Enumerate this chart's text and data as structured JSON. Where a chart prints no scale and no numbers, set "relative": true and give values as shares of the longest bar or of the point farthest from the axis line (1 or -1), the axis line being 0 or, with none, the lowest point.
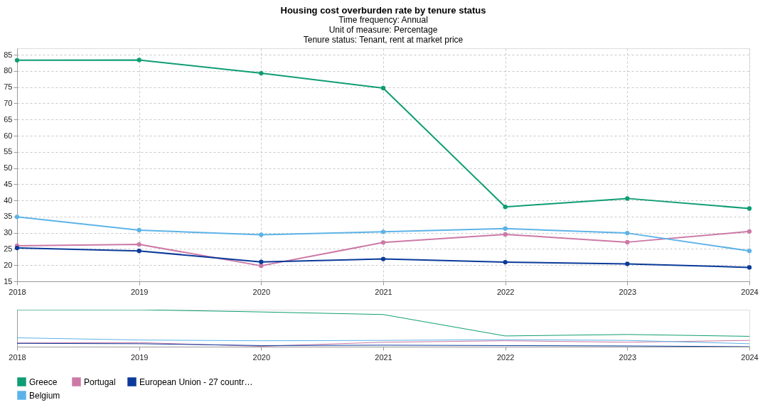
{
  "chart_data": [
    {
      "type": "line",
      "title": "Housing cost overburden rate by tenure status",
      "subtitle": "Time frequency:  Annual\nUnit of measure:  Percentage\nTenure status:  Tenant, rent at market price",
      "x": [
        2018,
        2019,
        2020,
        2021,
        2022,
        2023,
        2024
      ],
      "series": [
        {
          "name": "Greece",
          "color": "#0f9d73",
          "values": [
            83.3,
            83.4,
            79.3,
            74.7,
            38.0,
            40.6,
            37.5
          ]
        },
        {
          "name": "Portugal",
          "color": "#cc79a7",
          "values": [
            26.0,
            26.4,
            19.8,
            27.0,
            29.5,
            27.1,
            30.4
          ]
        },
        {
          "name": "European Union - 27 countr…",
          "color": "#0b3a9a",
          "values": [
            25.3,
            24.4,
            21.0,
            21.9,
            20.9,
            20.4,
            19.3
          ]
        },
        {
          "name": "Belgium",
          "color": "#5db3e8",
          "values": [
            34.9,
            30.8,
            29.4,
            30.3,
            31.3,
            29.9,
            24.4
          ]
        }
      ],
      "xlim": [
        2018,
        2024
      ],
      "xticks": [
        2018,
        2019,
        2020,
        2021,
        2022,
        2023,
        2024
      ],
      "ylim": [
        15,
        87
      ],
      "yticks": [
        15,
        20,
        25,
        30,
        35,
        40,
        45,
        50,
        55,
        60,
        65,
        70,
        75,
        80,
        85
      ],
      "grid": true,
      "marker": "circle",
      "line_style": "solid",
      "legend": "bottom"
    },
    {
      "type": "line",
      "x": [
        2018,
        2019,
        2020,
        2021,
        2022,
        2023,
        2024
      ],
      "series": [
        {
          "name": "Greece",
          "color": "#0f9d73",
          "values": [
            1.0,
            1.0,
            0.94,
            0.87,
            0.29,
            0.33,
            0.28
          ]
        },
        {
          "name": "Portugal",
          "color": "#cc79a7",
          "values": [
            0.1,
            0.11,
            0.01,
            0.12,
            0.16,
            0.12,
            0.17
          ]
        },
        {
          "name": "European Union - 27 countr…",
          "color": "#0b3a9a",
          "values": [
            0.09,
            0.08,
            0.03,
            0.04,
            0.03,
            0.02,
            0.0
          ]
        },
        {
          "name": "Belgium",
          "color": "#5db3e8",
          "values": [
            0.24,
            0.18,
            0.16,
            0.17,
            0.19,
            0.17,
            0.08
          ]
        }
      ],
      "xlim": [
        2018,
        2024
      ],
      "xticks": [
        2018,
        2019,
        2020,
        2021,
        2022,
        2023,
        2024
      ],
      "relative": true,
      "tick_labels": "x",
      "line_style": "solid"
    }
  ]
}
